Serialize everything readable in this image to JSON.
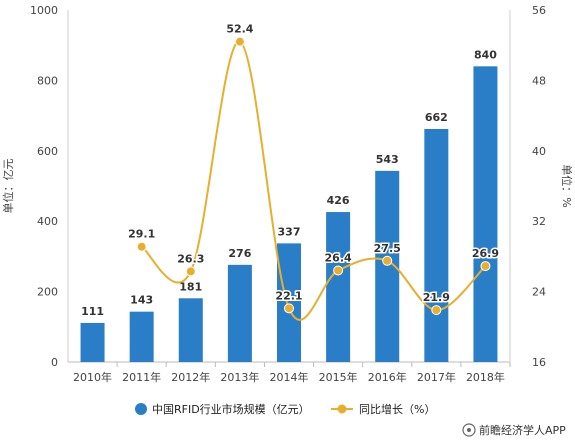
{
  "chart_data": {
    "type": "bar",
    "categories": [
      "2010年",
      "2011年",
      "2012年",
      "2013年",
      "2014年",
      "2015年",
      "2016年",
      "2017年",
      "2018年"
    ],
    "series": [
      {
        "name": "中国RFID行业市场规模（亿元）",
        "type": "bar",
        "axis": "left",
        "color": "#2a7ec8",
        "values": [
          111,
          143,
          181,
          276,
          337,
          426,
          543,
          662,
          840
        ]
      },
      {
        "name": "同比增长（%）",
        "type": "line",
        "axis": "right",
        "color": "#e8ae2e",
        "values": [
          null,
          29.1,
          26.3,
          52.4,
          22.1,
          26.4,
          27.5,
          21.9,
          26.9
        ],
        "labels": [
          "",
          "29.1",
          "26.3",
          "52.4",
          "22.1",
          "26.4",
          "27.5",
          "21.9",
          "26.9"
        ]
      }
    ],
    "bar_labels": [
      "111",
      "143",
      "181",
      "276",
      "337",
      "426",
      "543",
      "662",
      "840"
    ],
    "ylabel_left": "单位：亿元",
    "ylabel_right": "单位：%",
    "ylim_left": [
      0,
      1000
    ],
    "ylim_right": [
      16,
      56
    ],
    "yticks_left": [
      "0",
      "200",
      "400",
      "600",
      "800",
      "1000"
    ],
    "yticks_right": [
      "16",
      "24",
      "32",
      "40",
      "48",
      "56"
    ],
    "grid": false,
    "legend_position": "bottom"
  },
  "credit": "前瞻经济学人APP"
}
